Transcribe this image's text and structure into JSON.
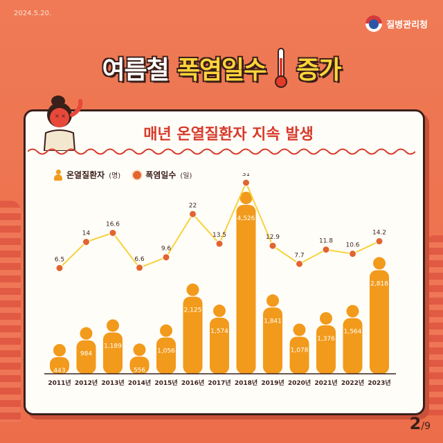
{
  "header": {
    "date": "2024.5.20.",
    "agency": "질병관리청",
    "title_white": "여름철",
    "title_yellow": "폭염일수",
    "title_tail": "증가"
  },
  "card": {
    "subtitle": "매년 온열질환자 지속 발생"
  },
  "legend": {
    "patients": "온열질환자",
    "patients_unit": "(명)",
    "heatdays": "폭염일수",
    "heatdays_unit": "(일)"
  },
  "pager": {
    "current": "2",
    "total": "/9"
  },
  "colors": {
    "bar": "#f29a1b",
    "bar_dark": "#e06a12",
    "line": "#f7d23a",
    "dot": "#e2642f",
    "ink": "#3a1f1a",
    "accent": "#d73a2a"
  },
  "chart_data": {
    "type": "bar",
    "categories": [
      "2011년",
      "2012년",
      "2013년",
      "2014년",
      "2015년",
      "2016년",
      "2017년",
      "2018년",
      "2019년",
      "2020년",
      "2021년",
      "2022년",
      "2023년"
    ],
    "series": [
      {
        "name": "온열질환자(명)",
        "type": "bar",
        "values": [
          443,
          984,
          1189,
          556,
          1056,
          2125,
          1574,
          4526,
          1841,
          1078,
          1376,
          1564,
          2818
        ],
        "labels": [
          "443",
          "984",
          "1,189",
          "556",
          "1,056",
          "2,125",
          "1,574",
          "4,526",
          "1,841",
          "1,078",
          "1,376",
          "1,564",
          "2,818"
        ]
      },
      {
        "name": "폭염일수(일)",
        "type": "line",
        "values": [
          6.5,
          14,
          16.6,
          6.6,
          9.6,
          22,
          13.5,
          31,
          12.9,
          7.7,
          11.8,
          10.6,
          14.2
        ],
        "labels": [
          "6.5",
          "14",
          "16.6",
          "6.6",
          "9.6",
          "22",
          "13.5",
          "31",
          "12.9",
          "7.7",
          "11.8",
          "10.6",
          "14.2"
        ]
      }
    ],
    "legend": "top-left",
    "grid": false
  }
}
